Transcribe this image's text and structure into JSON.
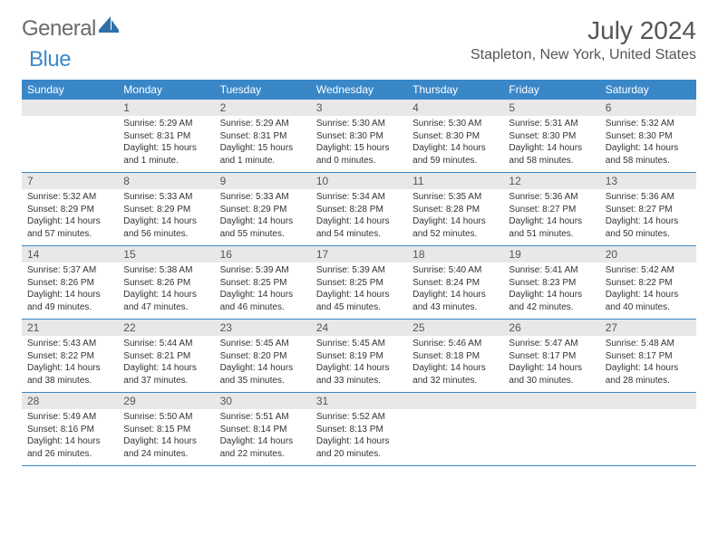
{
  "brand": {
    "part1": "General",
    "part2": "Blue"
  },
  "title": "July 2024",
  "location": "Stapleton, New York, United States",
  "style": {
    "header_bg": "#3a87c8",
    "header_text": "#ffffff",
    "daynum_bg": "#e8e8e8",
    "daynum_text": "#555555",
    "body_text": "#333333",
    "divider": "#3a87c8",
    "page_bg": "#ffffff",
    "title_color": "#555555",
    "title_fontsize": 28,
    "location_fontsize": 16,
    "body_fontsize": 10,
    "columns": 7
  },
  "weekdays": [
    "Sunday",
    "Monday",
    "Tuesday",
    "Wednesday",
    "Thursday",
    "Friday",
    "Saturday"
  ],
  "weeks": [
    [
      {
        "n": "",
        "sr": "",
        "ss": "",
        "dl": ""
      },
      {
        "n": "1",
        "sr": "Sunrise: 5:29 AM",
        "ss": "Sunset: 8:31 PM",
        "dl": "Daylight: 15 hours and 1 minute."
      },
      {
        "n": "2",
        "sr": "Sunrise: 5:29 AM",
        "ss": "Sunset: 8:31 PM",
        "dl": "Daylight: 15 hours and 1 minute."
      },
      {
        "n": "3",
        "sr": "Sunrise: 5:30 AM",
        "ss": "Sunset: 8:30 PM",
        "dl": "Daylight: 15 hours and 0 minutes."
      },
      {
        "n": "4",
        "sr": "Sunrise: 5:30 AM",
        "ss": "Sunset: 8:30 PM",
        "dl": "Daylight: 14 hours and 59 minutes."
      },
      {
        "n": "5",
        "sr": "Sunrise: 5:31 AM",
        "ss": "Sunset: 8:30 PM",
        "dl": "Daylight: 14 hours and 58 minutes."
      },
      {
        "n": "6",
        "sr": "Sunrise: 5:32 AM",
        "ss": "Sunset: 8:30 PM",
        "dl": "Daylight: 14 hours and 58 minutes."
      }
    ],
    [
      {
        "n": "7",
        "sr": "Sunrise: 5:32 AM",
        "ss": "Sunset: 8:29 PM",
        "dl": "Daylight: 14 hours and 57 minutes."
      },
      {
        "n": "8",
        "sr": "Sunrise: 5:33 AM",
        "ss": "Sunset: 8:29 PM",
        "dl": "Daylight: 14 hours and 56 minutes."
      },
      {
        "n": "9",
        "sr": "Sunrise: 5:33 AM",
        "ss": "Sunset: 8:29 PM",
        "dl": "Daylight: 14 hours and 55 minutes."
      },
      {
        "n": "10",
        "sr": "Sunrise: 5:34 AM",
        "ss": "Sunset: 8:28 PM",
        "dl": "Daylight: 14 hours and 54 minutes."
      },
      {
        "n": "11",
        "sr": "Sunrise: 5:35 AM",
        "ss": "Sunset: 8:28 PM",
        "dl": "Daylight: 14 hours and 52 minutes."
      },
      {
        "n": "12",
        "sr": "Sunrise: 5:36 AM",
        "ss": "Sunset: 8:27 PM",
        "dl": "Daylight: 14 hours and 51 minutes."
      },
      {
        "n": "13",
        "sr": "Sunrise: 5:36 AM",
        "ss": "Sunset: 8:27 PM",
        "dl": "Daylight: 14 hours and 50 minutes."
      }
    ],
    [
      {
        "n": "14",
        "sr": "Sunrise: 5:37 AM",
        "ss": "Sunset: 8:26 PM",
        "dl": "Daylight: 14 hours and 49 minutes."
      },
      {
        "n": "15",
        "sr": "Sunrise: 5:38 AM",
        "ss": "Sunset: 8:26 PM",
        "dl": "Daylight: 14 hours and 47 minutes."
      },
      {
        "n": "16",
        "sr": "Sunrise: 5:39 AM",
        "ss": "Sunset: 8:25 PM",
        "dl": "Daylight: 14 hours and 46 minutes."
      },
      {
        "n": "17",
        "sr": "Sunrise: 5:39 AM",
        "ss": "Sunset: 8:25 PM",
        "dl": "Daylight: 14 hours and 45 minutes."
      },
      {
        "n": "18",
        "sr": "Sunrise: 5:40 AM",
        "ss": "Sunset: 8:24 PM",
        "dl": "Daylight: 14 hours and 43 minutes."
      },
      {
        "n": "19",
        "sr": "Sunrise: 5:41 AM",
        "ss": "Sunset: 8:23 PM",
        "dl": "Daylight: 14 hours and 42 minutes."
      },
      {
        "n": "20",
        "sr": "Sunrise: 5:42 AM",
        "ss": "Sunset: 8:22 PM",
        "dl": "Daylight: 14 hours and 40 minutes."
      }
    ],
    [
      {
        "n": "21",
        "sr": "Sunrise: 5:43 AM",
        "ss": "Sunset: 8:22 PM",
        "dl": "Daylight: 14 hours and 38 minutes."
      },
      {
        "n": "22",
        "sr": "Sunrise: 5:44 AM",
        "ss": "Sunset: 8:21 PM",
        "dl": "Daylight: 14 hours and 37 minutes."
      },
      {
        "n": "23",
        "sr": "Sunrise: 5:45 AM",
        "ss": "Sunset: 8:20 PM",
        "dl": "Daylight: 14 hours and 35 minutes."
      },
      {
        "n": "24",
        "sr": "Sunrise: 5:45 AM",
        "ss": "Sunset: 8:19 PM",
        "dl": "Daylight: 14 hours and 33 minutes."
      },
      {
        "n": "25",
        "sr": "Sunrise: 5:46 AM",
        "ss": "Sunset: 8:18 PM",
        "dl": "Daylight: 14 hours and 32 minutes."
      },
      {
        "n": "26",
        "sr": "Sunrise: 5:47 AM",
        "ss": "Sunset: 8:17 PM",
        "dl": "Daylight: 14 hours and 30 minutes."
      },
      {
        "n": "27",
        "sr": "Sunrise: 5:48 AM",
        "ss": "Sunset: 8:17 PM",
        "dl": "Daylight: 14 hours and 28 minutes."
      }
    ],
    [
      {
        "n": "28",
        "sr": "Sunrise: 5:49 AM",
        "ss": "Sunset: 8:16 PM",
        "dl": "Daylight: 14 hours and 26 minutes."
      },
      {
        "n": "29",
        "sr": "Sunrise: 5:50 AM",
        "ss": "Sunset: 8:15 PM",
        "dl": "Daylight: 14 hours and 24 minutes."
      },
      {
        "n": "30",
        "sr": "Sunrise: 5:51 AM",
        "ss": "Sunset: 8:14 PM",
        "dl": "Daylight: 14 hours and 22 minutes."
      },
      {
        "n": "31",
        "sr": "Sunrise: 5:52 AM",
        "ss": "Sunset: 8:13 PM",
        "dl": "Daylight: 14 hours and 20 minutes."
      },
      {
        "n": "",
        "sr": "",
        "ss": "",
        "dl": ""
      },
      {
        "n": "",
        "sr": "",
        "ss": "",
        "dl": ""
      },
      {
        "n": "",
        "sr": "",
        "ss": "",
        "dl": ""
      }
    ]
  ]
}
